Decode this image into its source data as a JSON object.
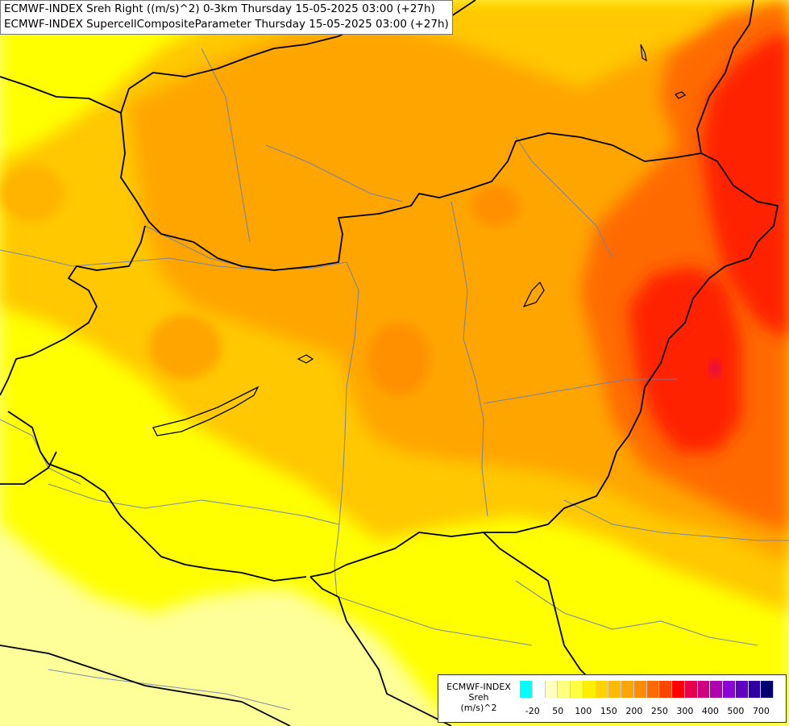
{
  "header": {
    "line1": "ECMWF-INDEX Sreh Right ((m/s)^2) 0-3km Thursday 15-05-2025 03:00 (+27h)",
    "line2": "ECMWF-INDEX SupercellCompositeParameter Thursday 15-05-2025 03:00 (+27h)"
  },
  "legend": {
    "title_lines": [
      "ECMWF-INDEX",
      "Sreh",
      "(m/s)^2"
    ],
    "tick_labels": [
      "-20",
      "50",
      "100",
      "150",
      "200",
      "250",
      "300",
      "400",
      "500",
      "700"
    ],
    "swatch_colors": [
      "#00ffff",
      "#ffffff",
      "#ffffc0",
      "#ffff80",
      "#ffff40",
      "#ffee00",
      "#ffd200",
      "#ffbb00",
      "#ffa500",
      "#ff8c00",
      "#ff6a00",
      "#ff4500",
      "#ff0000",
      "#e8004a",
      "#cc0080",
      "#b000b0",
      "#8e00d8",
      "#6000c0",
      "#3000a0",
      "#000070"
    ]
  },
  "colors": {
    "pale_yellow": "#ffff99",
    "yellow": "#ffff00",
    "orange_light": "#ffc800",
    "orange": "#ffa500",
    "red_orange": "#ff6a00",
    "red": "#ff2000",
    "magenta": "#e0006a",
    "country_border": "#000000",
    "river": "#6f7fb0"
  }
}
